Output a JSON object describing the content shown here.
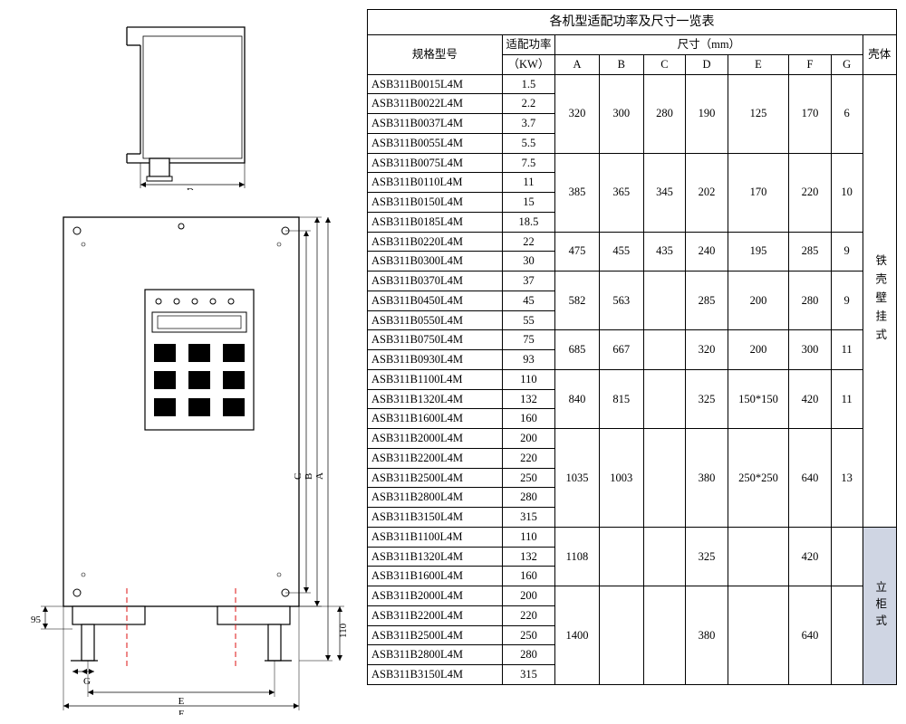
{
  "table": {
    "title": "各机型适配功率及尺寸一览表",
    "headers": {
      "model": "规格型号",
      "power": "适配功率",
      "power_unit": "（KW）",
      "dims": "尺寸（mm）",
      "shell": "壳体",
      "A": "A",
      "B": "B",
      "C": "C",
      "D": "D",
      "E": "E",
      "F": "F",
      "G": "G"
    },
    "shell_types": {
      "wall": "铁壳壁挂式",
      "cabinet": "立柜式"
    },
    "groups": [
      {
        "dims": {
          "A": "320",
          "B": "300",
          "C": "280",
          "D": "190",
          "E": "125",
          "F": "170",
          "G": "6"
        },
        "rows": [
          {
            "model": "ASB311B0015L4M",
            "kw": "1.5"
          },
          {
            "model": "ASB311B0022L4M",
            "kw": "2.2"
          },
          {
            "model": "ASB311B0037L4M",
            "kw": "3.7"
          },
          {
            "model": "ASB311B0055L4M",
            "kw": "5.5"
          }
        ]
      },
      {
        "dims": {
          "A": "385",
          "B": "365",
          "C": "345",
          "D": "202",
          "E": "170",
          "F": "220",
          "G": "10"
        },
        "rows": [
          {
            "model": "ASB311B0075L4M",
            "kw": "7.5"
          },
          {
            "model": "ASB311B0110L4M",
            "kw": "11"
          },
          {
            "model": "ASB311B0150L4M",
            "kw": "15"
          },
          {
            "model": "ASB311B0185L4M",
            "kw": "18.5"
          }
        ]
      },
      {
        "dims": {
          "A": "475",
          "B": "455",
          "C": "435",
          "D": "240",
          "E": "195",
          "F": "285",
          "G": "9"
        },
        "rows": [
          {
            "model": "ASB311B0220L4M",
            "kw": "22"
          },
          {
            "model": "ASB311B0300L4M",
            "kw": "30"
          }
        ]
      },
      {
        "dims": {
          "A": "582",
          "B": "563",
          "C": "",
          "D": "285",
          "E": "200",
          "F": "280",
          "G": "9"
        },
        "rows": [
          {
            "model": "ASB311B0370L4M",
            "kw": "37"
          },
          {
            "model": "ASB311B0450L4M",
            "kw": "45"
          },
          {
            "model": "ASB311B0550L4M",
            "kw": "55"
          }
        ]
      },
      {
        "dims": {
          "A": "685",
          "B": "667",
          "C": "",
          "D": "320",
          "E": "200",
          "F": "300",
          "G": "11"
        },
        "rows": [
          {
            "model": "ASB311B0750L4M",
            "kw": "75"
          },
          {
            "model": "ASB311B0930L4M",
            "kw": "93"
          }
        ]
      },
      {
        "dims": {
          "A": "840",
          "B": "815",
          "C": "",
          "D": "325",
          "E": "150*150",
          "F": "420",
          "G": "11"
        },
        "rows": [
          {
            "model": "ASB311B1100L4M",
            "kw": "110"
          },
          {
            "model": "ASB311B1320L4M",
            "kw": "132"
          },
          {
            "model": "ASB311B1600L4M",
            "kw": "160"
          }
        ]
      },
      {
        "dims": {
          "A": "1035",
          "B": "1003",
          "C": "",
          "D": "380",
          "E": "250*250",
          "F": "640",
          "G": "13"
        },
        "rows": [
          {
            "model": "ASB311B2000L4M",
            "kw": "200"
          },
          {
            "model": "ASB311B2200L4M",
            "kw": "220"
          },
          {
            "model": "ASB311B2500L4M",
            "kw": "250"
          },
          {
            "model": "ASB311B2800L4M",
            "kw": "280"
          },
          {
            "model": "ASB311B3150L4M",
            "kw": "315"
          }
        ]
      },
      {
        "dims": {
          "A": "1108",
          "B": "",
          "C": "",
          "D": "325",
          "E": "",
          "F": "420",
          "G": ""
        },
        "rows": [
          {
            "model": "ASB311B1100L4M",
            "kw": "110"
          },
          {
            "model": "ASB311B1320L4M",
            "kw": "132"
          },
          {
            "model": "ASB311B1600L4M",
            "kw": "160"
          }
        ]
      },
      {
        "dims": {
          "A": "1400",
          "B": "",
          "C": "",
          "D": "380",
          "E": "",
          "F": "640",
          "G": ""
        },
        "rows": [
          {
            "model": "ASB311B2000L4M",
            "kw": "200"
          },
          {
            "model": "ASB311B2200L4M",
            "kw": "220"
          },
          {
            "model": "ASB311B2500L4M",
            "kw": "250"
          },
          {
            "model": "ASB311B2800L4M",
            "kw": "280"
          },
          {
            "model": "ASB311B3150L4M",
            "kw": "315"
          }
        ]
      }
    ],
    "wall_groups": 7,
    "cabinet_groups_start": 7
  },
  "diagram": {
    "top": {
      "label_D": "D",
      "stroke": "#000",
      "thin_stroke": "#555"
    },
    "main": {
      "label_A": "A",
      "label_B": "B",
      "label_C": "C",
      "label_E": "E",
      "label_F": "F",
      "label_G": "G",
      "dim_95": "95",
      "dim_110": "110"
    },
    "colors": {
      "outline": "#000",
      "dash": "#d11",
      "bg": "#fff"
    }
  }
}
